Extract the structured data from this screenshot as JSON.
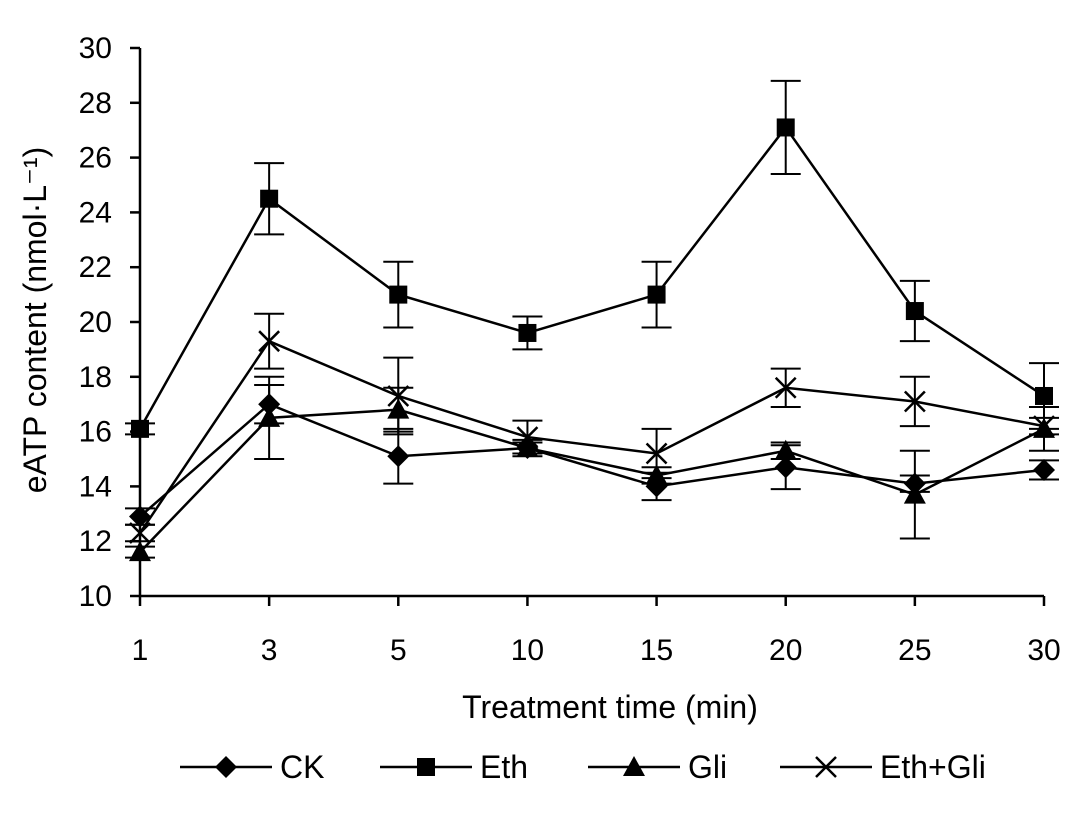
{
  "chart_data": {
    "type": "line",
    "xlabel": "Treatment time (min)",
    "ylabel": "eATP content (nmol·L⁻¹)",
    "categories": [
      "1",
      "3",
      "5",
      "10",
      "15",
      "20",
      "25",
      "30"
    ],
    "ylim": [
      10,
      30
    ],
    "yticks": [
      "10",
      "12",
      "14",
      "16",
      "18",
      "20",
      "22",
      "24",
      "26",
      "28",
      "30"
    ],
    "legend_position": "bottom",
    "grid": false,
    "series": [
      {
        "name": "CK",
        "marker": "diamond",
        "values": [
          12.9,
          17.0,
          15.1,
          15.4,
          14.0,
          14.7,
          14.1,
          14.6
        ],
        "errors": [
          0.3,
          0.7,
          1.0,
          0.3,
          0.5,
          0.8,
          0.3,
          0.35
        ]
      },
      {
        "name": "Eth",
        "marker": "square",
        "values": [
          16.1,
          24.5,
          21.0,
          19.6,
          21.0,
          27.1,
          20.4,
          17.3
        ],
        "errors": [
          0.2,
          1.3,
          1.2,
          0.6,
          1.2,
          1.7,
          1.1,
          1.2
        ]
      },
      {
        "name": "Gli",
        "marker": "triangle",
        "values": [
          11.6,
          16.5,
          16.8,
          15.4,
          14.4,
          15.3,
          13.7,
          16.1
        ],
        "errors": [
          0.2,
          1.5,
          0.8,
          0.2,
          0.3,
          0.3,
          1.6,
          0.8
        ]
      },
      {
        "name": "Eth+Gli",
        "marker": "x",
        "values": [
          12.3,
          19.3,
          17.3,
          15.8,
          15.2,
          17.6,
          17.1,
          16.2
        ],
        "errors": [
          0.3,
          1.0,
          1.4,
          0.6,
          0.9,
          0.7,
          0.9,
          0.3
        ]
      }
    ]
  }
}
